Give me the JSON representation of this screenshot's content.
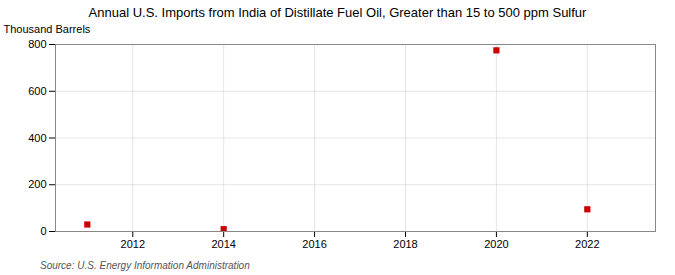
{
  "chart_data": {
    "type": "scatter",
    "title": "Annual U.S. Imports from India of Distillate Fuel Oil, Greater than 15 to 500 ppm Sulfur",
    "ylabel": "Thousand Barrels",
    "caption": "Source: U.S. Energy Information Administration",
    "x": [
      2011,
      2014,
      2020,
      2022
    ],
    "values": [
      30,
      10,
      775,
      95
    ],
    "color": "#cc0000",
    "marker": "square",
    "xlim": [
      2010.3,
      2023.5
    ],
    "ylim": [
      0,
      800
    ],
    "xticks": [
      2012,
      2014,
      2016,
      2018,
      2020,
      2022
    ],
    "yticks": [
      0,
      200,
      400,
      600,
      800
    ],
    "grid": true
  }
}
